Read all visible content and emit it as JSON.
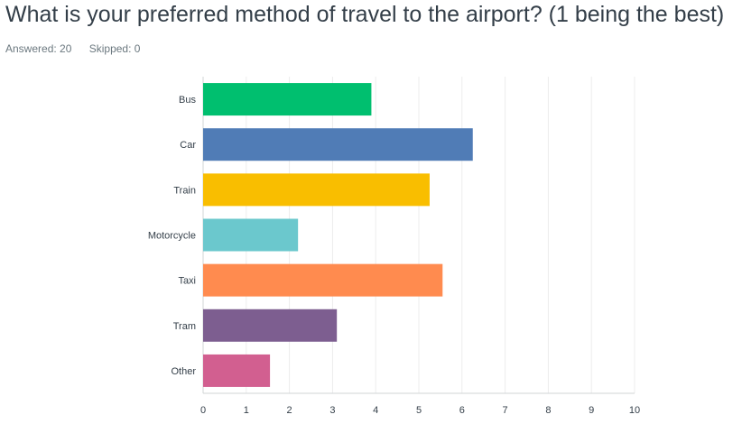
{
  "question": {
    "title": "What is your preferred method of travel to the airport? (1 being the best)",
    "answered": "Answered: 20",
    "skipped": "Skipped: 0"
  },
  "chart_data": {
    "type": "bar",
    "orientation": "horizontal",
    "categories": [
      "Bus",
      "Car",
      "Train",
      "Motorcycle",
      "Taxi",
      "Tram",
      "Other"
    ],
    "values": [
      3.9,
      6.25,
      5.25,
      2.2,
      5.55,
      3.1,
      1.55
    ],
    "colors": [
      "#00bf6f",
      "#507cb6",
      "#f9be00",
      "#6bc8cd",
      "#ff8b4f",
      "#7d5e90",
      "#d25f90"
    ],
    "xlim": [
      0,
      10
    ],
    "xticks": [
      0,
      1,
      2,
      3,
      4,
      5,
      6,
      7,
      8,
      9,
      10
    ],
    "grid": true,
    "title": "",
    "xlabel": "",
    "ylabel": ""
  }
}
